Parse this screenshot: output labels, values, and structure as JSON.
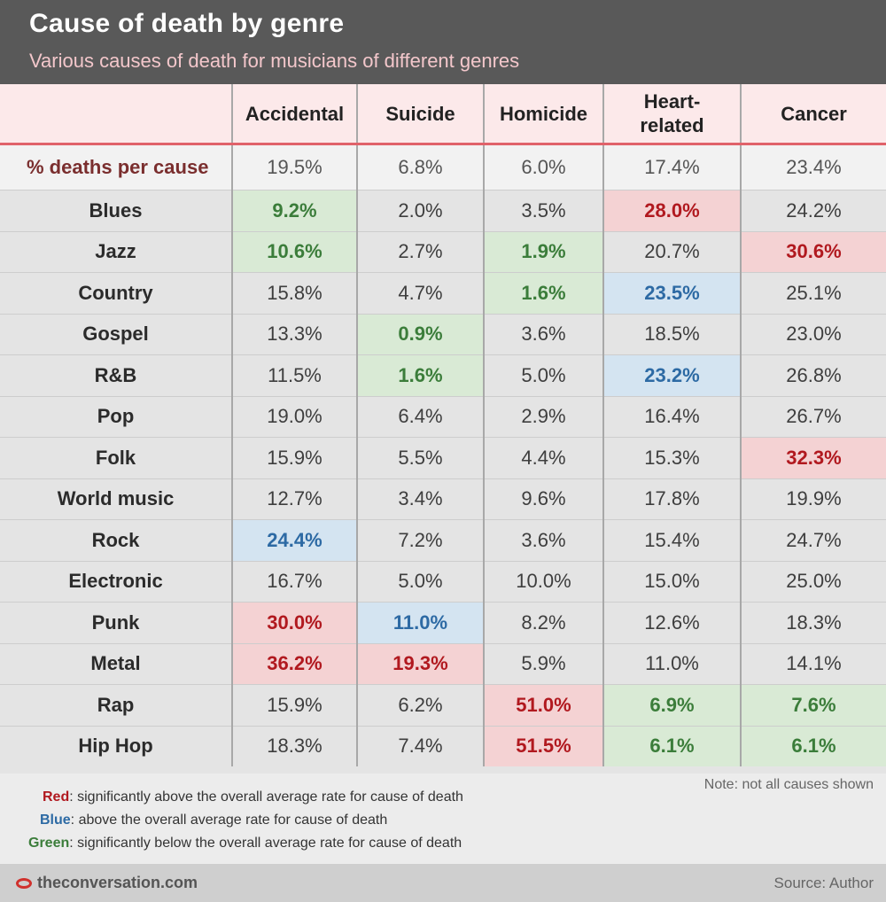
{
  "header": {
    "title": "Cause of death by genre",
    "subtitle": "Various causes of death for musicians of different genres"
  },
  "chart_data": {
    "type": "table",
    "title": "Cause of death by genre",
    "subtitle": "Various causes of death for musicians of different genres",
    "columns": [
      "Accidental",
      "Suicide",
      "Homicide",
      "Heart-\nrelated",
      "Cancer"
    ],
    "average_row": {
      "label": "% deaths per cause",
      "values": [
        "19.5%",
        "6.8%",
        "6.0%",
        "17.4%",
        "23.4%"
      ]
    },
    "rows": [
      {
        "genre": "Blues",
        "values": [
          "9.2%",
          "2.0%",
          "3.5%",
          "28.0%",
          "24.2%"
        ],
        "highlights": [
          "green",
          "",
          "",
          "red",
          ""
        ]
      },
      {
        "genre": "Jazz",
        "values": [
          "10.6%",
          "2.7%",
          "1.9%",
          "20.7%",
          "30.6%"
        ],
        "highlights": [
          "green",
          "",
          "green",
          "",
          "red"
        ]
      },
      {
        "genre": "Country",
        "values": [
          "15.8%",
          "4.7%",
          "1.6%",
          "23.5%",
          "25.1%"
        ],
        "highlights": [
          "",
          "",
          "green",
          "blue",
          ""
        ]
      },
      {
        "genre": "Gospel",
        "values": [
          "13.3%",
          "0.9%",
          "3.6%",
          "18.5%",
          "23.0%"
        ],
        "highlights": [
          "",
          "green",
          "",
          "",
          ""
        ]
      },
      {
        "genre": "R&B",
        "values": [
          "11.5%",
          "1.6%",
          "5.0%",
          "23.2%",
          "26.8%"
        ],
        "highlights": [
          "",
          "green",
          "",
          "blue",
          ""
        ]
      },
      {
        "genre": "Pop",
        "values": [
          "19.0%",
          "6.4%",
          "2.9%",
          "16.4%",
          "26.7%"
        ],
        "highlights": [
          "",
          "",
          "",
          "",
          ""
        ]
      },
      {
        "genre": "Folk",
        "values": [
          "15.9%",
          "5.5%",
          "4.4%",
          "15.3%",
          "32.3%"
        ],
        "highlights": [
          "",
          "",
          "",
          "",
          "red"
        ]
      },
      {
        "genre": "World music",
        "values": [
          "12.7%",
          "3.4%",
          "9.6%",
          "17.8%",
          "19.9%"
        ],
        "highlights": [
          "",
          "",
          "",
          "",
          ""
        ]
      },
      {
        "genre": "Rock",
        "values": [
          "24.4%",
          "7.2%",
          "3.6%",
          "15.4%",
          "24.7%"
        ],
        "highlights": [
          "blue",
          "",
          "",
          "",
          ""
        ]
      },
      {
        "genre": "Electronic",
        "values": [
          "16.7%",
          "5.0%",
          "10.0%",
          "15.0%",
          "25.0%"
        ],
        "highlights": [
          "",
          "",
          "",
          "",
          ""
        ]
      },
      {
        "genre": "Punk",
        "values": [
          "30.0%",
          "11.0%",
          "8.2%",
          "12.6%",
          "18.3%"
        ],
        "highlights": [
          "red",
          "blue",
          "",
          "",
          ""
        ]
      },
      {
        "genre": "Metal",
        "values": [
          "36.2%",
          "19.3%",
          "5.9%",
          "11.0%",
          "14.1%"
        ],
        "highlights": [
          "red",
          "red",
          "",
          "",
          ""
        ]
      },
      {
        "genre": "Rap",
        "values": [
          "15.9%",
          "6.2%",
          "51.0%",
          "6.9%",
          "7.6%"
        ],
        "highlights": [
          "",
          "",
          "red",
          "green",
          "green"
        ]
      },
      {
        "genre": "Hip Hop",
        "values": [
          "18.3%",
          "7.4%",
          "51.5%",
          "6.1%",
          "6.1%"
        ],
        "highlights": [
          "",
          "",
          "red",
          "green",
          "green"
        ]
      }
    ]
  },
  "legend": {
    "items": [
      {
        "key": "Red",
        "color": "#b1191f",
        "text": ": significantly above the overall average rate for cause of death"
      },
      {
        "key": "Blue",
        "color": "#2d6aa4",
        "text": ": above the overall average rate for cause of death"
      },
      {
        "key": "Green",
        "color": "#3b7d3a",
        "text": ": significantly below the overall average rate for cause of death"
      }
    ],
    "note": "Note: not all causes shown"
  },
  "footer": {
    "brand": "theconversation.com",
    "source": "Source: Author"
  }
}
